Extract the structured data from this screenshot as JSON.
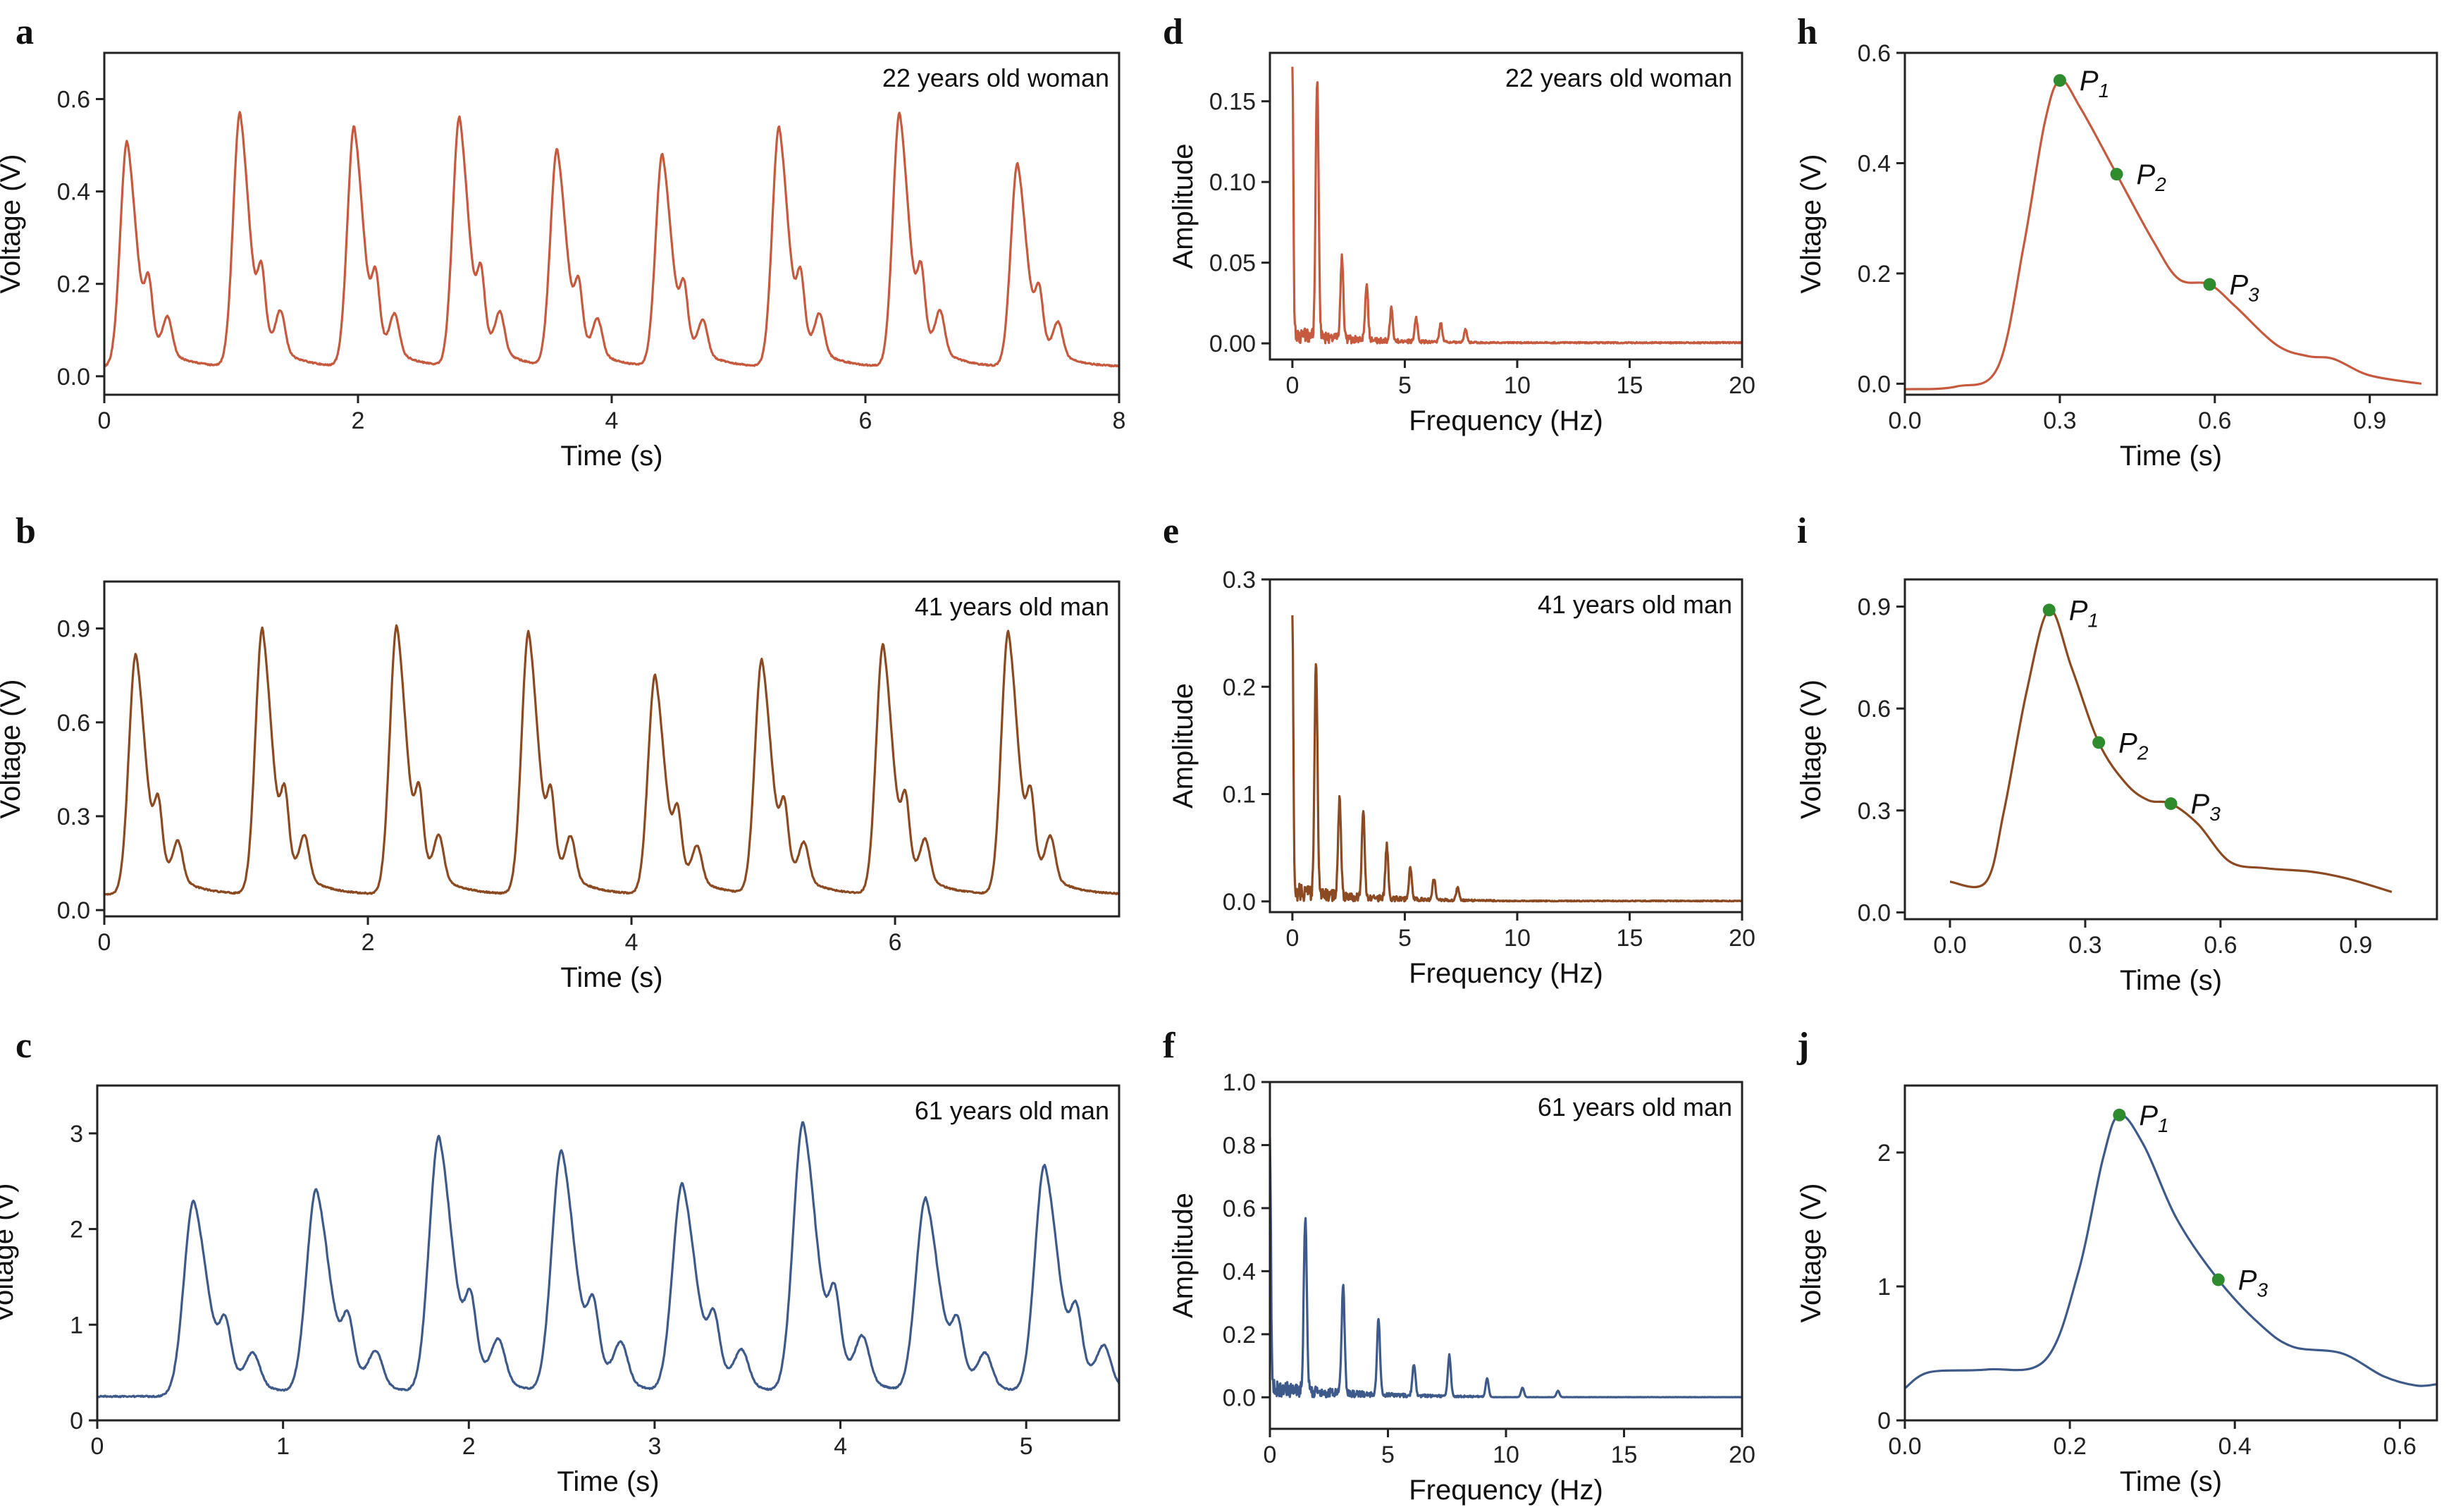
{
  "colors": {
    "woman22": "#C65A3F",
    "man41": "#8B4A22",
    "man61": "#3D5A8A",
    "marker": "#2E8B2E"
  },
  "chart_data": [
    {
      "id": "a",
      "type": "line",
      "panel_letter": "a",
      "annotation": "22 years old woman",
      "xlabel": "Time (s)",
      "ylabel": "Voltage (V)",
      "xlim": [
        0,
        8
      ],
      "ylim": [
        -0.04,
        0.7
      ],
      "xticks": [
        0,
        2,
        4,
        6,
        8
      ],
      "xtick_labels": [
        "0",
        "2",
        "4",
        "6",
        "8"
      ],
      "yticks": [
        0,
        0.2,
        0.4,
        0.6
      ],
      "ytick_labels": [
        "0.0",
        "0.2",
        "0.4",
        "0.6"
      ],
      "color_key": "woman22",
      "beats": {
        "times": [
          0.18,
          1.07,
          1.97,
          2.8,
          3.57,
          4.4,
          5.32,
          6.27,
          7.2
        ],
        "amps": [
          0.51,
          0.57,
          0.54,
          0.56,
          0.49,
          0.48,
          0.54,
          0.57,
          0.46
        ],
        "base": 0.02,
        "period": 0.88
      }
    },
    {
      "id": "b",
      "type": "line",
      "panel_letter": "b",
      "annotation": "41 years old man",
      "xlabel": "Time (s)",
      "ylabel": "Voltage (V)",
      "xlim": [
        0,
        7.7
      ],
      "ylim": [
        -0.02,
        1.05
      ],
      "xticks": [
        0,
        2,
        4,
        6
      ],
      "xtick_labels": [
        "0",
        "2",
        "4",
        "6"
      ],
      "yticks": [
        0,
        0.3,
        0.6,
        0.9
      ],
      "ytick_labels": [
        "0.0",
        "0.3",
        "0.6",
        "0.9"
      ],
      "color_key": "man41",
      "beats": {
        "times": [
          0.24,
          1.2,
          2.22,
          3.22,
          4.18,
          4.99,
          5.91,
          6.86
        ],
        "amps": [
          0.82,
          0.9,
          0.91,
          0.89,
          0.75,
          0.8,
          0.85,
          0.89
        ],
        "base": 0.05,
        "period": 0.96
      }
    },
    {
      "id": "c",
      "type": "line",
      "panel_letter": "c",
      "annotation": "61 years old man",
      "xlabel": "Time (s)",
      "ylabel": "Voltage (V)",
      "xlim": [
        0,
        5.5
      ],
      "ylim": [
        0,
        3.5
      ],
      "xticks": [
        0,
        1,
        2,
        3,
        4,
        5
      ],
      "xtick_labels": [
        "0",
        "1",
        "2",
        "3",
        "4",
        "5"
      ],
      "yticks": [
        0,
        1,
        2,
        3
      ],
      "ytick_labels": [
        "0",
        "1",
        "2",
        "3"
      ],
      "color_key": "man61",
      "beats": {
        "times": [
          0.52,
          1.18,
          1.84,
          2.5,
          3.15,
          3.8,
          4.46,
          5.1
        ],
        "amps": [
          2.3,
          2.4,
          2.95,
          2.8,
          2.45,
          3.1,
          2.3,
          2.65
        ],
        "base": 0.25,
        "period": 0.65
      }
    },
    {
      "id": "d",
      "type": "spectrum",
      "panel_letter": "d",
      "annotation": "22 years old woman",
      "xlabel": "Frequency (Hz)",
      "ylabel": "Amplitude",
      "xlim": [
        -1,
        20
      ],
      "ylim": [
        -0.01,
        0.18
      ],
      "xticks": [
        0,
        5,
        10,
        15,
        20
      ],
      "xtick_labels": [
        "0",
        "5",
        "10",
        "15",
        "20"
      ],
      "yticks": [
        0,
        0.05,
        0.1,
        0.15
      ],
      "ytick_labels": [
        "0.00",
        "0.05",
        "0.10",
        "0.15"
      ],
      "color_key": "woman22",
      "peaks": [
        {
          "f": 0.0,
          "a": 0.168
        },
        {
          "f": 1.1,
          "a": 0.16
        },
        {
          "f": 2.2,
          "a": 0.05
        },
        {
          "f": 3.3,
          "a": 0.035
        },
        {
          "f": 4.4,
          "a": 0.02
        },
        {
          "f": 5.5,
          "a": 0.015
        },
        {
          "f": 6.6,
          "a": 0.012
        },
        {
          "f": 7.7,
          "a": 0.008
        }
      ]
    },
    {
      "id": "e",
      "type": "spectrum",
      "panel_letter": "e",
      "annotation": "41 years old man",
      "xlabel": "Frequency (Hz)",
      "ylabel": "Amplitude",
      "xlim": [
        -1,
        20
      ],
      "ylim": [
        -0.01,
        0.3
      ],
      "xticks": [
        0,
        5,
        10,
        15,
        20
      ],
      "xtick_labels": [
        "0",
        "5",
        "10",
        "15",
        "20"
      ],
      "yticks": [
        0,
        0.1,
        0.2,
        0.3
      ],
      "ytick_labels": [
        "0.0",
        "0.1",
        "0.2",
        "0.3"
      ],
      "color_key": "man41",
      "peaks": [
        {
          "f": 0.0,
          "a": 0.26
        },
        {
          "f": 1.05,
          "a": 0.22
        },
        {
          "f": 2.1,
          "a": 0.09
        },
        {
          "f": 3.15,
          "a": 0.08
        },
        {
          "f": 4.2,
          "a": 0.05
        },
        {
          "f": 5.25,
          "a": 0.03
        },
        {
          "f": 6.3,
          "a": 0.02
        },
        {
          "f": 7.35,
          "a": 0.012
        }
      ]
    },
    {
      "id": "f",
      "type": "spectrum",
      "panel_letter": "f",
      "annotation": "61 years old man",
      "xlabel": "Frequency (Hz)",
      "ylabel": "Amplitude",
      "xlim": [
        0,
        20
      ],
      "ylim": [
        -0.1,
        1.0
      ],
      "xticks": [
        0,
        5,
        10,
        15,
        20
      ],
      "xtick_labels": [
        "0",
        "5",
        "10",
        "15",
        "20"
      ],
      "yticks": [
        0,
        0.2,
        0.4,
        0.6,
        0.8,
        1.0
      ],
      "ytick_labels": [
        "0.0",
        "0.2",
        "0.4",
        "0.6",
        "0.8",
        "1.0"
      ],
      "color_key": "man61",
      "peaks": [
        {
          "f": 0.0,
          "a": 0.8
        },
        {
          "f": 1.5,
          "a": 0.56
        },
        {
          "f": 3.1,
          "a": 0.34
        },
        {
          "f": 4.6,
          "a": 0.24
        },
        {
          "f": 6.1,
          "a": 0.1
        },
        {
          "f": 7.6,
          "a": 0.13
        },
        {
          "f": 9.2,
          "a": 0.06
        },
        {
          "f": 10.7,
          "a": 0.03
        },
        {
          "f": 12.2,
          "a": 0.02
        }
      ]
    },
    {
      "id": "h",
      "type": "line",
      "panel_letter": "h",
      "xlabel": "Time (s)",
      "ylabel": "Voltage (V)",
      "xlim": [
        0,
        1.03
      ],
      "ylim": [
        -0.02,
        0.6
      ],
      "xticks": [
        0,
        0.3,
        0.6,
        0.9
      ],
      "xtick_labels": [
        "0.0",
        "0.3",
        "0.6",
        "0.9"
      ],
      "yticks": [
        0,
        0.2,
        0.4,
        0.6
      ],
      "ytick_labels": [
        "0.0",
        "0.2",
        "0.4",
        "0.6"
      ],
      "color_key": "woman22",
      "curve": [
        [
          0,
          -0.01
        ],
        [
          0.1,
          -0.005
        ],
        [
          0.18,
          0.03
        ],
        [
          0.23,
          0.25
        ],
        [
          0.27,
          0.47
        ],
        [
          0.3,
          0.55
        ],
        [
          0.34,
          0.5
        ],
        [
          0.41,
          0.38
        ],
        [
          0.48,
          0.26
        ],
        [
          0.53,
          0.19
        ],
        [
          0.59,
          0.18
        ],
        [
          0.64,
          0.14
        ],
        [
          0.72,
          0.07
        ],
        [
          0.78,
          0.05
        ],
        [
          0.83,
          0.045
        ],
        [
          0.9,
          0.015
        ],
        [
          1.0,
          0.0
        ]
      ],
      "markers": [
        {
          "label": "P",
          "sub": "1",
          "x": 0.3,
          "y": 0.55
        },
        {
          "label": "P",
          "sub": "2",
          "x": 0.41,
          "y": 0.38
        },
        {
          "label": "P",
          "sub": "3",
          "x": 0.59,
          "y": 0.18
        }
      ]
    },
    {
      "id": "i",
      "type": "line",
      "panel_letter": "i",
      "xlabel": "Time (s)",
      "ylabel": "Voltage (V)",
      "xlim": [
        -0.1,
        1.08
      ],
      "ylim": [
        -0.02,
        0.98
      ],
      "xticks": [
        0,
        0.3,
        0.6,
        0.9
      ],
      "xtick_labels": [
        "0.0",
        "0.3",
        "0.6",
        "0.9"
      ],
      "yticks": [
        0,
        0.3,
        0.6,
        0.9
      ],
      "ytick_labels": [
        "0.0",
        "0.3",
        "0.6",
        "0.9"
      ],
      "color_key": "man41",
      "curve": [
        [
          0,
          0.09
        ],
        [
          0.08,
          0.09
        ],
        [
          0.12,
          0.3
        ],
        [
          0.17,
          0.65
        ],
        [
          0.22,
          0.89
        ],
        [
          0.27,
          0.72
        ],
        [
          0.33,
          0.5
        ],
        [
          0.39,
          0.38
        ],
        [
          0.44,
          0.33
        ],
        [
          0.49,
          0.32
        ],
        [
          0.55,
          0.26
        ],
        [
          0.62,
          0.15
        ],
        [
          0.7,
          0.13
        ],
        [
          0.8,
          0.12
        ],
        [
          0.88,
          0.1
        ],
        [
          0.98,
          0.06
        ]
      ],
      "markers": [
        {
          "label": "P",
          "sub": "1",
          "x": 0.22,
          "y": 0.89
        },
        {
          "label": "P",
          "sub": "2",
          "x": 0.33,
          "y": 0.5
        },
        {
          "label": "P",
          "sub": "3",
          "x": 0.49,
          "y": 0.32
        }
      ]
    },
    {
      "id": "j",
      "type": "line",
      "panel_letter": "j",
      "xlabel": "Time (s)",
      "ylabel": "Voltage (V)",
      "xlim": [
        0,
        0.645
      ],
      "ylim": [
        0,
        2.5
      ],
      "xticks": [
        0,
        0.2,
        0.4,
        0.6
      ],
      "xtick_labels": [
        "0.0",
        "0.2",
        "0.4",
        "0.6"
      ],
      "yticks": [
        0,
        1,
        2
      ],
      "ytick_labels": [
        "0",
        "1",
        "2"
      ],
      "color_key": "man61",
      "curve": [
        [
          0,
          0.24
        ],
        [
          0.03,
          0.36
        ],
        [
          0.1,
          0.38
        ],
        [
          0.17,
          0.45
        ],
        [
          0.21,
          1.1
        ],
        [
          0.24,
          1.95
        ],
        [
          0.26,
          2.28
        ],
        [
          0.29,
          2.05
        ],
        [
          0.33,
          1.5
        ],
        [
          0.38,
          1.05
        ],
        [
          0.43,
          0.72
        ],
        [
          0.47,
          0.55
        ],
        [
          0.53,
          0.5
        ],
        [
          0.58,
          0.33
        ],
        [
          0.62,
          0.26
        ],
        [
          0.645,
          0.27
        ]
      ],
      "markers": [
        {
          "label": "P",
          "sub": "1",
          "x": 0.26,
          "y": 2.28
        },
        {
          "label": "P",
          "sub": "3",
          "x": 0.38,
          "y": 1.05
        }
      ]
    }
  ]
}
